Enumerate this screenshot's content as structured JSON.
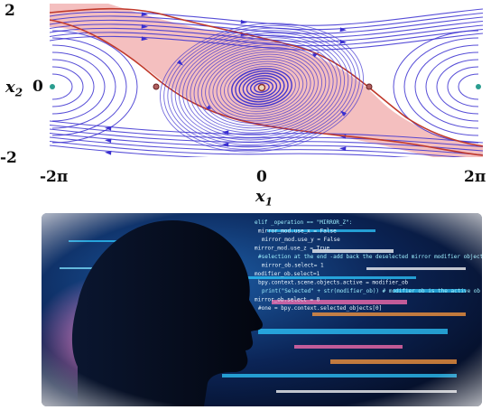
{
  "phase_plot": {
    "y_label": "x",
    "y_label_sub": "2",
    "x_label": "x",
    "x_label_sub": "1",
    "y_ticks": [
      "2",
      "0",
      "-2"
    ],
    "x_ticks": [
      "-2π",
      "0",
      "2π"
    ],
    "colors": {
      "streamline": "#3a2fd0",
      "basin_fill": "#f2b4b4",
      "separatrix": "#c0392b",
      "center_point": "#2a9d8f",
      "saddle_point": "#8b2e2e"
    },
    "icons": [
      "center-equilibrium",
      "saddle-equilibrium"
    ]
  },
  "illustration": {
    "subject": "head-silhouette-with-code",
    "code_lines": [
      "elif _operation == \"MIRROR_Z\":",
      "mirror_mod.use_x = False",
      "mirror_mod.use_y = False",
      "mirror_mod.use_z = True",
      "#selection at the end -add back the deselected mirror modifier object",
      "mirror_ob.select= 1",
      "modifier_ob.select=1",
      "bpy.context.scene.objects.active = modifier_ob",
      "print(\"Selected\" + str(modifier_ob)) # modifier ob is the active ob",
      "mirror_ob.select = 0",
      "#one = bpy.context.selected_objects[0]"
    ],
    "colors": {
      "background": "#0a1a3a",
      "silhouette": "#050a18",
      "glow": "#2ec8ff",
      "accent_pink": "#ff6fb0",
      "accent_orange": "#ff9a3c"
    }
  }
}
